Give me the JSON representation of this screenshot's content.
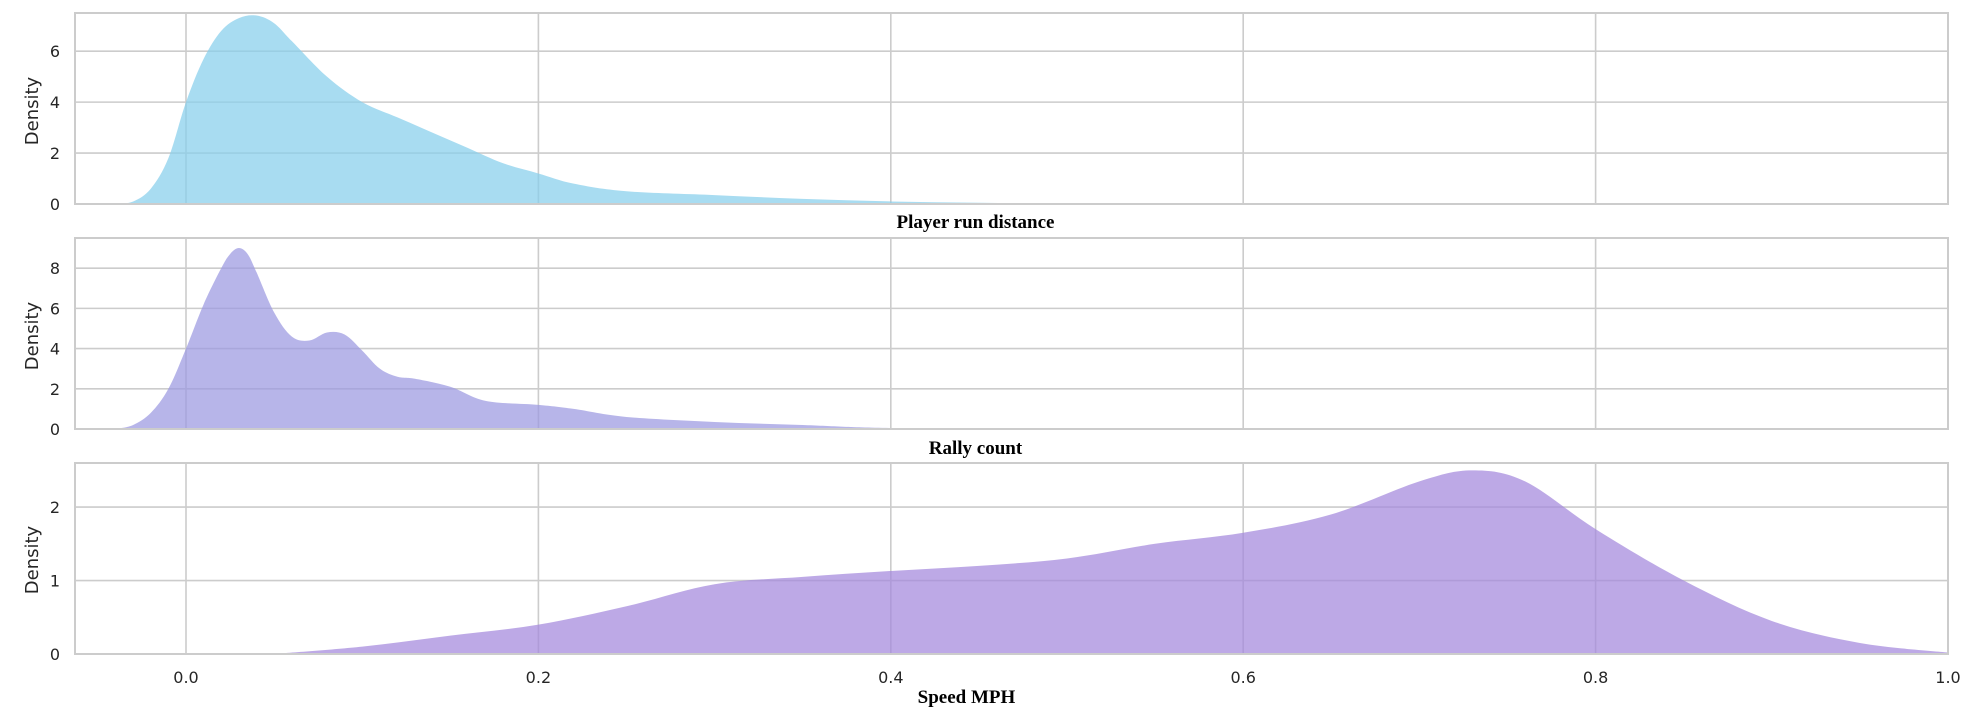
{
  "chart_data": [
    {
      "type": "area",
      "title": "",
      "xlabel": "",
      "ylabel": "Density",
      "xlim": [
        -0.063,
        1.0
      ],
      "ylim": [
        0,
        7.5
      ],
      "xticks": [
        0.0,
        0.2,
        0.4,
        0.6,
        0.8,
        1.0
      ],
      "xtick_labels": [],
      "yticks": [
        0,
        2,
        4,
        6
      ],
      "ytick_labels": [
        "0",
        "2",
        "4",
        "6"
      ],
      "grid": true,
      "color": "#87CEEB",
      "x": [
        -0.04,
        -0.03,
        -0.02,
        -0.01,
        0.0,
        0.01,
        0.02,
        0.03,
        0.04,
        0.05,
        0.06,
        0.08,
        0.1,
        0.12,
        0.14,
        0.16,
        0.18,
        0.2,
        0.22,
        0.25,
        0.3,
        0.35,
        0.4,
        0.45,
        0.5,
        0.55
      ],
      "values": [
        0.0,
        0.1,
        0.6,
        1.8,
        4.0,
        5.7,
        6.8,
        7.3,
        7.4,
        7.1,
        6.4,
        5.0,
        4.0,
        3.4,
        2.8,
        2.2,
        1.6,
        1.2,
        0.8,
        0.5,
        0.35,
        0.2,
        0.1,
        0.05,
        0.02,
        0.0
      ]
    },
    {
      "type": "area",
      "title": "Player run distance",
      "xlabel": "",
      "ylabel": "Density",
      "xlim": [
        -0.063,
        1.0
      ],
      "ylim": [
        0,
        9.5
      ],
      "xticks": [
        0.0,
        0.2,
        0.4,
        0.6,
        0.8,
        1.0
      ],
      "xtick_labels": [],
      "yticks": [
        0,
        2,
        4,
        6,
        8
      ],
      "ytick_labels": [
        "0",
        "2",
        "4",
        "6",
        "8"
      ],
      "grid": true,
      "color": "#9B99E0",
      "x": [
        -0.04,
        -0.03,
        -0.02,
        -0.01,
        0.0,
        0.01,
        0.02,
        0.025,
        0.03,
        0.035,
        0.04,
        0.05,
        0.06,
        0.07,
        0.08,
        0.09,
        0.1,
        0.11,
        0.12,
        0.13,
        0.15,
        0.17,
        0.2,
        0.22,
        0.25,
        0.3,
        0.35,
        0.4,
        0.5
      ],
      "values": [
        0.0,
        0.2,
        0.8,
        2.0,
        4.0,
        6.2,
        8.0,
        8.7,
        9.0,
        8.7,
        7.8,
        5.8,
        4.6,
        4.4,
        4.8,
        4.7,
        3.9,
        3.0,
        2.6,
        2.5,
        2.1,
        1.4,
        1.2,
        1.0,
        0.6,
        0.35,
        0.2,
        0.05,
        0.0
      ]
    },
    {
      "type": "area",
      "title": "Rally count",
      "xlabel": "Speed MPH",
      "ylabel": "Density",
      "xlim": [
        -0.063,
        1.0
      ],
      "ylim": [
        0,
        2.6
      ],
      "xticks": [
        0.0,
        0.2,
        0.4,
        0.6,
        0.8,
        1.0
      ],
      "xtick_labels": [
        "0.0",
        "0.2",
        "0.4",
        "0.6",
        "0.8",
        "1.0"
      ],
      "yticks": [
        0,
        1,
        2
      ],
      "ytick_labels": [
        "0",
        "1",
        "2"
      ],
      "grid": true,
      "color": "#A488DD",
      "x": [
        0.05,
        0.1,
        0.15,
        0.2,
        0.25,
        0.3,
        0.35,
        0.4,
        0.45,
        0.5,
        0.55,
        0.6,
        0.65,
        0.7,
        0.73,
        0.76,
        0.8,
        0.85,
        0.9,
        0.95,
        1.0
      ],
      "values": [
        0.0,
        0.1,
        0.25,
        0.4,
        0.65,
        0.95,
        1.05,
        1.13,
        1.2,
        1.3,
        1.5,
        1.65,
        1.9,
        2.35,
        2.5,
        2.35,
        1.7,
        1.0,
        0.45,
        0.15,
        0.02
      ]
    }
  ]
}
